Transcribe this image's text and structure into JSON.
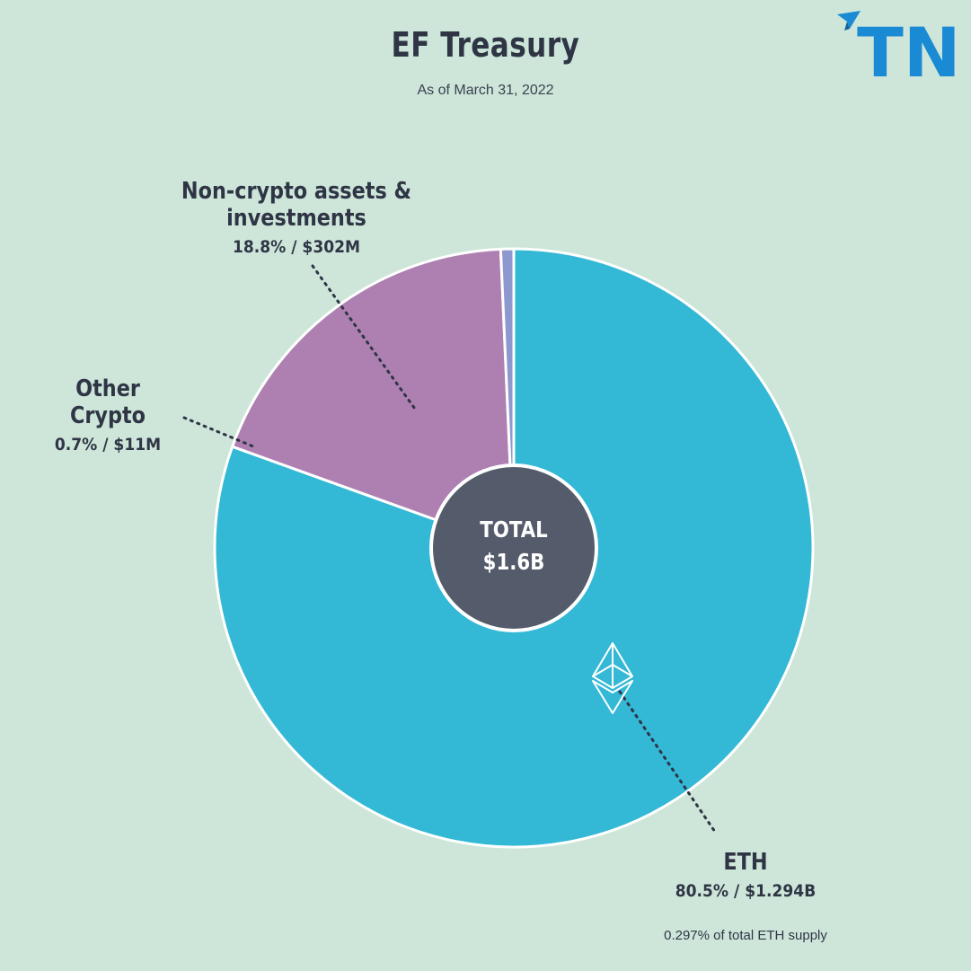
{
  "header": {
    "title": "EF Treasury",
    "subtitle": "As of March 31, 2022",
    "logo_text": "TN"
  },
  "center": {
    "line1": "TOTAL",
    "line2": "$1.6B"
  },
  "chart_data": {
    "type": "pie",
    "title": "EF Treasury",
    "subtitle": "As of March 31, 2022",
    "total": "$1.6B",
    "slices": [
      {
        "name": "ETH",
        "percent": 80.5,
        "value": "$1.294B",
        "value_usd": 1294000000,
        "label": "80.5% / $1.294B",
        "color": "#33b8d6"
      },
      {
        "name": "Non-crypto assets & investments",
        "percent": 18.8,
        "value": "$302M",
        "value_usd": 302000000,
        "label": "18.8% / $302M",
        "color": "#ae80b1"
      },
      {
        "name": "Other Crypto",
        "percent": 0.7,
        "value": "$11M",
        "value_usd": 11000000,
        "label": "0.7% / $11M",
        "color": "#8d98cf"
      }
    ],
    "annotation": "0.297% of total ETH supply"
  },
  "colors": {
    "background": "#cde6d9",
    "center": "#545b6b",
    "text": "#2f3545",
    "logo_blue": "#1a8ad4",
    "logo_navy": "#1b2f7d"
  },
  "icons": [
    "ethereum-icon",
    "paper-plane-icon"
  ]
}
